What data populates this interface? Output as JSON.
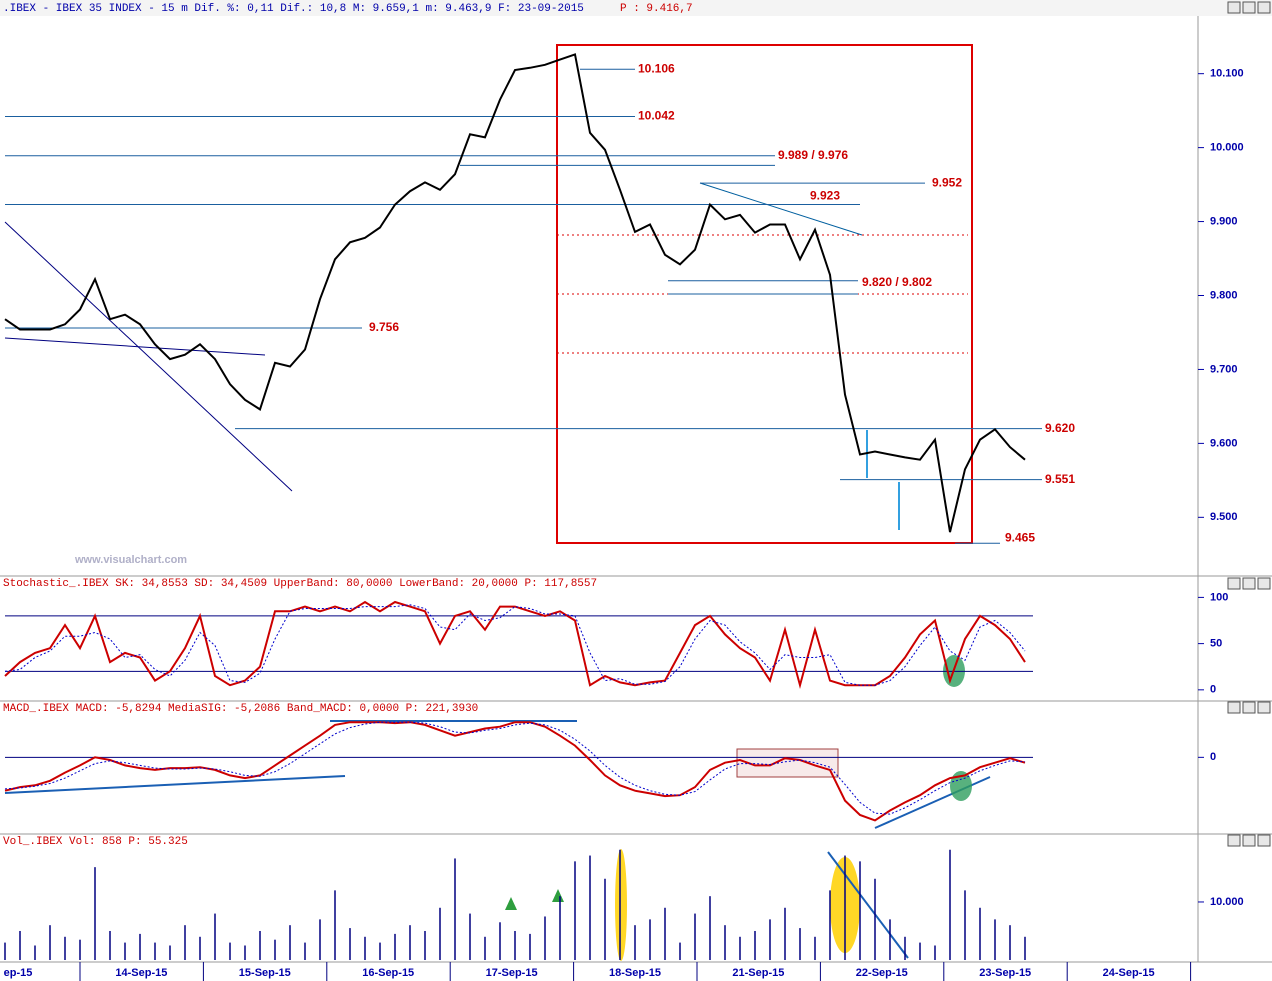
{
  "header": {
    "title": ".IBEX - IBEX 35 INDEX -  15 m Dif. %: 0,11 Dif.: 10,8 M: 9.659,1 m: 9.463,9 F: 23-09-2015",
    "price_label": "P : 9.416,7"
  },
  "watermark": "www.visualchart.com",
  "date_labels": [
    "ep-15",
    "14-Sep-15",
    "15-Sep-15",
    "16-Sep-15",
    "17-Sep-15",
    "18-Sep-15",
    "21-Sep-15",
    "22-Sep-15",
    "23-Sep-15",
    "24-Sep-15"
  ],
  "chart_data": [
    {
      "type": "line",
      "color": "#000000",
      "ylim": [
        9422,
        10178
      ],
      "yticks": [
        {
          "value": 10100,
          "label": "10.100"
        },
        {
          "value": 10000,
          "label": "10.000"
        },
        {
          "value": 9900,
          "label": "9.900"
        },
        {
          "value": 9800,
          "label": "9.800"
        },
        {
          "value": 9700,
          "label": "9.700"
        },
        {
          "value": 9600,
          "label": "9.600"
        },
        {
          "value": 9500,
          "label": "9.500"
        }
      ],
      "values": [
        9768,
        9754,
        9754,
        9754,
        9761,
        9781,
        9822,
        9768,
        9774,
        9761,
        9734,
        9714,
        9720,
        9734,
        9714,
        9680,
        9659,
        9646,
        9709,
        9704,
        9727,
        9795,
        9849,
        9872,
        9878,
        9892,
        9923,
        9941,
        9953,
        9943,
        9964,
        10018,
        10014,
        10065,
        10105,
        10108,
        10112,
        10119,
        10126,
        10020,
        9997,
        9943,
        9886,
        9896,
        9855,
        9842,
        9862,
        9923,
        9903,
        9909,
        9885,
        9896,
        9896,
        9849,
        9889,
        9828,
        9666,
        9585,
        9589,
        9585,
        9581,
        9578,
        9605,
        9480,
        9565,
        9605,
        9619,
        9595,
        9578
      ],
      "annotations": [
        {
          "text": "10.106",
          "values": [
            10106
          ]
        },
        {
          "text": "10.042",
          "values": [
            10042
          ]
        },
        {
          "text": "9.989 / 9.976",
          "values": [
            9989,
            9976
          ]
        },
        {
          "text": "9.923",
          "values": [
            9923
          ]
        },
        {
          "text": "9.952",
          "values": [
            9952
          ]
        },
        {
          "text": "9.820 / 9.802",
          "values": [
            9820,
            9802
          ]
        },
        {
          "text": "9.756",
          "values": [
            9756
          ]
        },
        {
          "text": "9.620",
          "values": [
            9620
          ]
        },
        {
          "text": "9.551",
          "values": [
            9551
          ]
        },
        {
          "text": "9.465",
          "values": [
            9465
          ]
        }
      ]
    },
    {
      "type": "line",
      "title": "Stochastic_.IBEX SK: 34,8553 SD: 34,4509 UpperBand: 80,0000 LowerBand: 20,0000 P: 117,8557",
      "ylim": [
        -11,
        108
      ],
      "yticks": [
        100,
        50,
        0
      ],
      "levels": [
        80,
        20
      ],
      "series": [
        {
          "color": "#cc0000",
          "values": [
            15,
            30,
            40,
            45,
            70,
            45,
            80,
            30,
            40,
            35,
            10,
            20,
            45,
            80,
            15,
            5,
            10,
            25,
            85,
            85,
            90,
            85,
            90,
            85,
            95,
            85,
            95,
            90,
            85,
            50,
            80,
            85,
            65,
            90,
            90,
            85,
            80,
            85,
            75,
            5,
            15,
            8,
            5,
            8,
            10,
            40,
            70,
            80,
            60,
            45,
            35,
            10,
            65,
            5,
            65,
            10,
            5,
            5,
            5,
            15,
            35,
            60,
            75,
            10,
            55,
            80,
            70,
            55,
            30
          ]
        },
        {
          "color": "#0000cc",
          "dash": true,
          "values": [
            20,
            22,
            35,
            42,
            58,
            58,
            62,
            55,
            35,
            38,
            22,
            15,
            32,
            62,
            48,
            10,
            8,
            18,
            55,
            85,
            88,
            88,
            88,
            88,
            90,
            90,
            90,
            92,
            88,
            68,
            65,
            82,
            75,
            78,
            90,
            88,
            82,
            82,
            80,
            40,
            10,
            12,
            6,
            6,
            9,
            25,
            55,
            75,
            70,
            52,
            40,
            22,
            38,
            35,
            35,
            38,
            8,
            5,
            5,
            10,
            25,
            48,
            68,
            42,
            32,
            68,
            75,
            62,
            42
          ]
        }
      ]
    },
    {
      "type": "line",
      "title": "MACD_.IBEX MACD: -5,8294 MediaSIG: -5,2086 Band_MACD: 0,0000 P: 221,3930",
      "ylim": [
        -84,
        47
      ],
      "yticks": [
        0
      ],
      "levels": [
        0
      ],
      "series": [
        {
          "color": "#cc0000",
          "values": [
            -37,
            -33,
            -31,
            -26,
            -17,
            -9,
            0,
            -3,
            -9,
            -12,
            -14,
            -12,
            -12,
            -11,
            -14,
            -20,
            -23,
            -20,
            -9,
            2,
            13,
            24,
            36,
            39,
            39,
            39,
            38,
            39,
            36,
            30,
            24,
            28,
            32,
            34,
            39,
            39,
            34,
            24,
            13,
            -3,
            -20,
            -31,
            -37,
            -40,
            -43,
            -42,
            -33,
            -14,
            -6,
            -3,
            -9,
            -9,
            -1,
            -3,
            -9,
            -14,
            -48,
            -64,
            -70,
            -59,
            -50,
            -42,
            -31,
            -23,
            -20,
            -11,
            -6,
            -1,
            -6
          ]
        },
        {
          "color": "#0000cc",
          "dash": true,
          "values": [
            -35,
            -34,
            -32,
            -29,
            -23,
            -15,
            -7,
            -4,
            -6,
            -9,
            -12,
            -13,
            -13,
            -12,
            -13,
            -16,
            -20,
            -21,
            -16,
            -7,
            4,
            15,
            26,
            33,
            37,
            39,
            39,
            39,
            38,
            34,
            28,
            27,
            30,
            32,
            36,
            38,
            36,
            30,
            20,
            7,
            -9,
            -22,
            -31,
            -37,
            -41,
            -42,
            -38,
            -25,
            -13,
            -7,
            -7,
            -8,
            -5,
            -3,
            -6,
            -11,
            -30,
            -50,
            -62,
            -63,
            -56,
            -47,
            -37,
            -28,
            -23,
            -15,
            -9,
            -4,
            -5
          ]
        }
      ]
    },
    {
      "type": "bar",
      "title": "Vol_.IBEX Vol: 858 P: 55.325",
      "color": "#000080",
      "ylim": [
        0,
        19300
      ],
      "yticks": [
        {
          "value": 10000,
          "label": "10.000"
        }
      ],
      "values": [
        3000,
        5000,
        2500,
        6000,
        4000,
        3500,
        16000,
        5000,
        3000,
        4500,
        3000,
        2500,
        6000,
        4000,
        8000,
        3000,
        2500,
        5000,
        3500,
        6000,
        3000,
        7000,
        12000,
        5500,
        4000,
        3000,
        4500,
        6000,
        5000,
        9000,
        17500,
        8000,
        4000,
        6500,
        5000,
        4500,
        7500,
        11000,
        17000,
        18000,
        14000,
        19000,
        6000,
        7000,
        9000,
        3000,
        8000,
        11000,
        6000,
        4000,
        5000,
        7000,
        9000,
        5500,
        4000,
        12000,
        18000,
        17000,
        14000,
        7000,
        4000,
        3000,
        2500,
        19000,
        12000,
        9000,
        7000,
        6000,
        4000
      ]
    }
  ]
}
